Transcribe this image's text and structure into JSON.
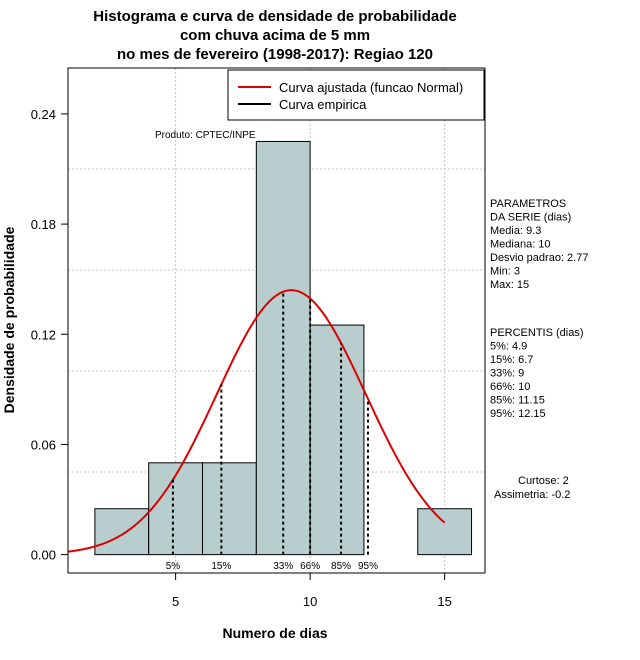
{
  "chart_data": {
    "type": "bar",
    "title_lines": [
      "Histograma e curva de densidade de probabilidade",
      "com chuva acima de 5 mm",
      "no mes de fevereiro (1998-2017): Regiao 120"
    ],
    "xlabel": "Numero de dias",
    "ylabel": "Densidade de probabilidade",
    "xlim": [
      1,
      16.5
    ],
    "ylim": [
      -0.01,
      0.265
    ],
    "x_ticks": [
      5,
      10,
      15
    ],
    "y_ticks": [
      0.0,
      0.06,
      0.12,
      0.18,
      0.24
    ],
    "x_tick_labels": [
      "5",
      "10",
      "15"
    ],
    "y_tick_labels": [
      "0.00",
      "0.06",
      "0.12",
      "0.18",
      "0.24"
    ],
    "grid": true,
    "bins": [
      {
        "start": 2,
        "end": 4,
        "density": 0.025
      },
      {
        "start": 4,
        "end": 6,
        "density": 0.05
      },
      {
        "start": 6,
        "end": 8,
        "density": 0.05
      },
      {
        "start": 8,
        "end": 10,
        "density": 0.225
      },
      {
        "start": 10,
        "end": 12,
        "density": 0.125
      },
      {
        "start": 12,
        "end": 14,
        "density": 0
      },
      {
        "start": 14,
        "end": 16,
        "density": 0.025
      }
    ],
    "bar_color": "#b8cece",
    "curve_color": "#dd0000",
    "normal_mean": 9.3,
    "normal_sd": 2.77,
    "curve_x_range": [
      1,
      15
    ],
    "percentile_lines": [
      {
        "label": "5%",
        "x": 4.9
      },
      {
        "label": "15%",
        "x": 6.7
      },
      {
        "label": "33%",
        "x": 9
      },
      {
        "label": "66%",
        "x": 10
      },
      {
        "label": "85%",
        "x": 11.15
      },
      {
        "label": "95%",
        "x": 12.15
      }
    ],
    "legend": {
      "placement": "top-right",
      "entries": [
        {
          "label": "Curva ajustada (funcao Normal)",
          "color": "#dd0000"
        },
        {
          "label": "Curva empirica",
          "color": "#000000"
        }
      ]
    },
    "annotation": "Produto: CPTEC/INPE"
  },
  "side_panel": {
    "params_lines": [
      "PARAMETROS",
      "DA SERIE (dias)",
      "   Media: 9.3",
      "   Mediana: 10",
      "   Desvio padrao: 2.77",
      "   Min: 3",
      "   Max: 15"
    ],
    "percentis_lines": [
      "PERCENTIS (dias)",
      "   5%: 4.9",
      "   15%: 6.7",
      "   33%: 9",
      "   66%: 10",
      "   85%: 11.15",
      "   95%: 12.15"
    ],
    "curtose": "Curtose: 2",
    "assimetria": "Assimetria: -0.2"
  }
}
